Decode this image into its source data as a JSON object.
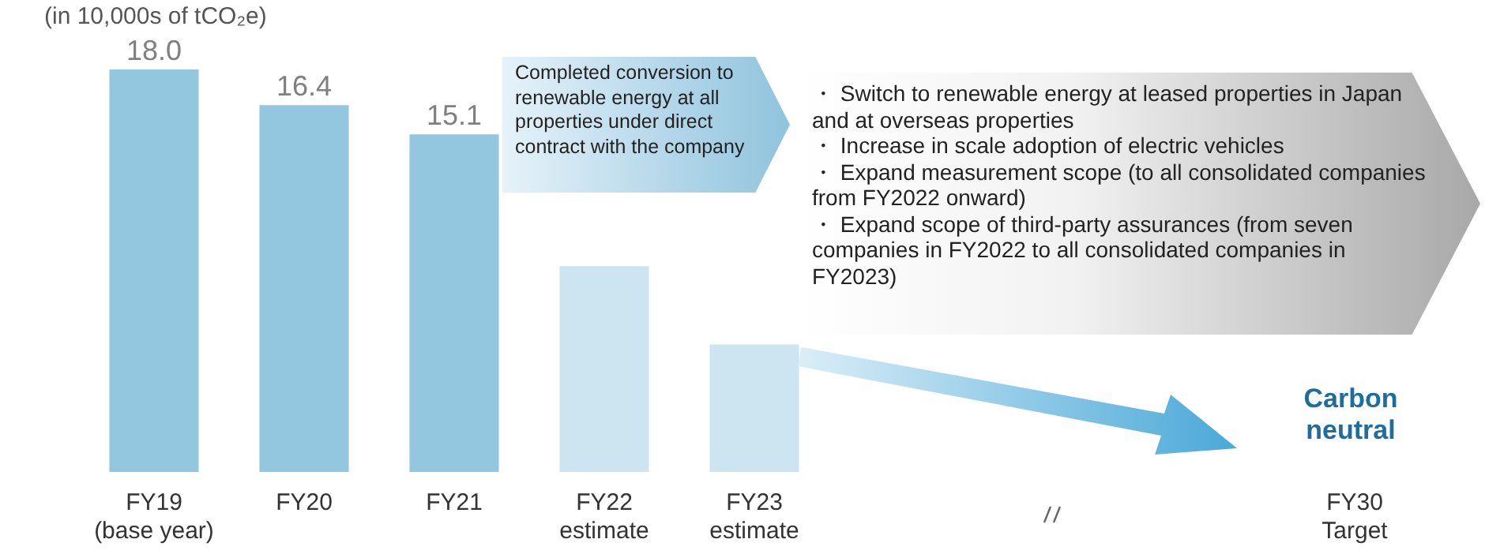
{
  "chart_data": {
    "type": "bar",
    "categories": [
      "FY19\n(base year)",
      "FY20",
      "FY21",
      "FY22\nestimate",
      "FY23\nestimate",
      null,
      null,
      null,
      "FY30\nTarget"
    ],
    "values": [
      18.0,
      16.4,
      15.1,
      9.2,
      5.7,
      null,
      null,
      null,
      null
    ],
    "colors": [
      "#93c6df",
      "#93c6df",
      "#93c6df",
      "#cde5f1",
      "#cde5f1",
      "#93c6df",
      "#93c6df",
      "#93c6df",
      "#93c6df"
    ],
    "value_labels": [
      "18.0",
      "16.4",
      "15.1",
      null,
      null,
      null,
      null,
      null,
      null
    ],
    "grid": false,
    "legend": false,
    "annotations": [
      "(in 10,000s of tCO₂e)",
      "Completed conversion to renewable energy at all properties under direct contract with the company",
      "・ Switch to renewable energy at leased properties in Japan and at overseas properties\n・ Increase in scale adoption of electric vehicles\n・ Expand measurement scope (to all consolidated companies from FY2022 onward)\n・ Expand scope of third-party assurances (from seven companies in FY2022 to all consolidated companies in FY2023)",
      "Carbon neutral"
    ]
  }
}
